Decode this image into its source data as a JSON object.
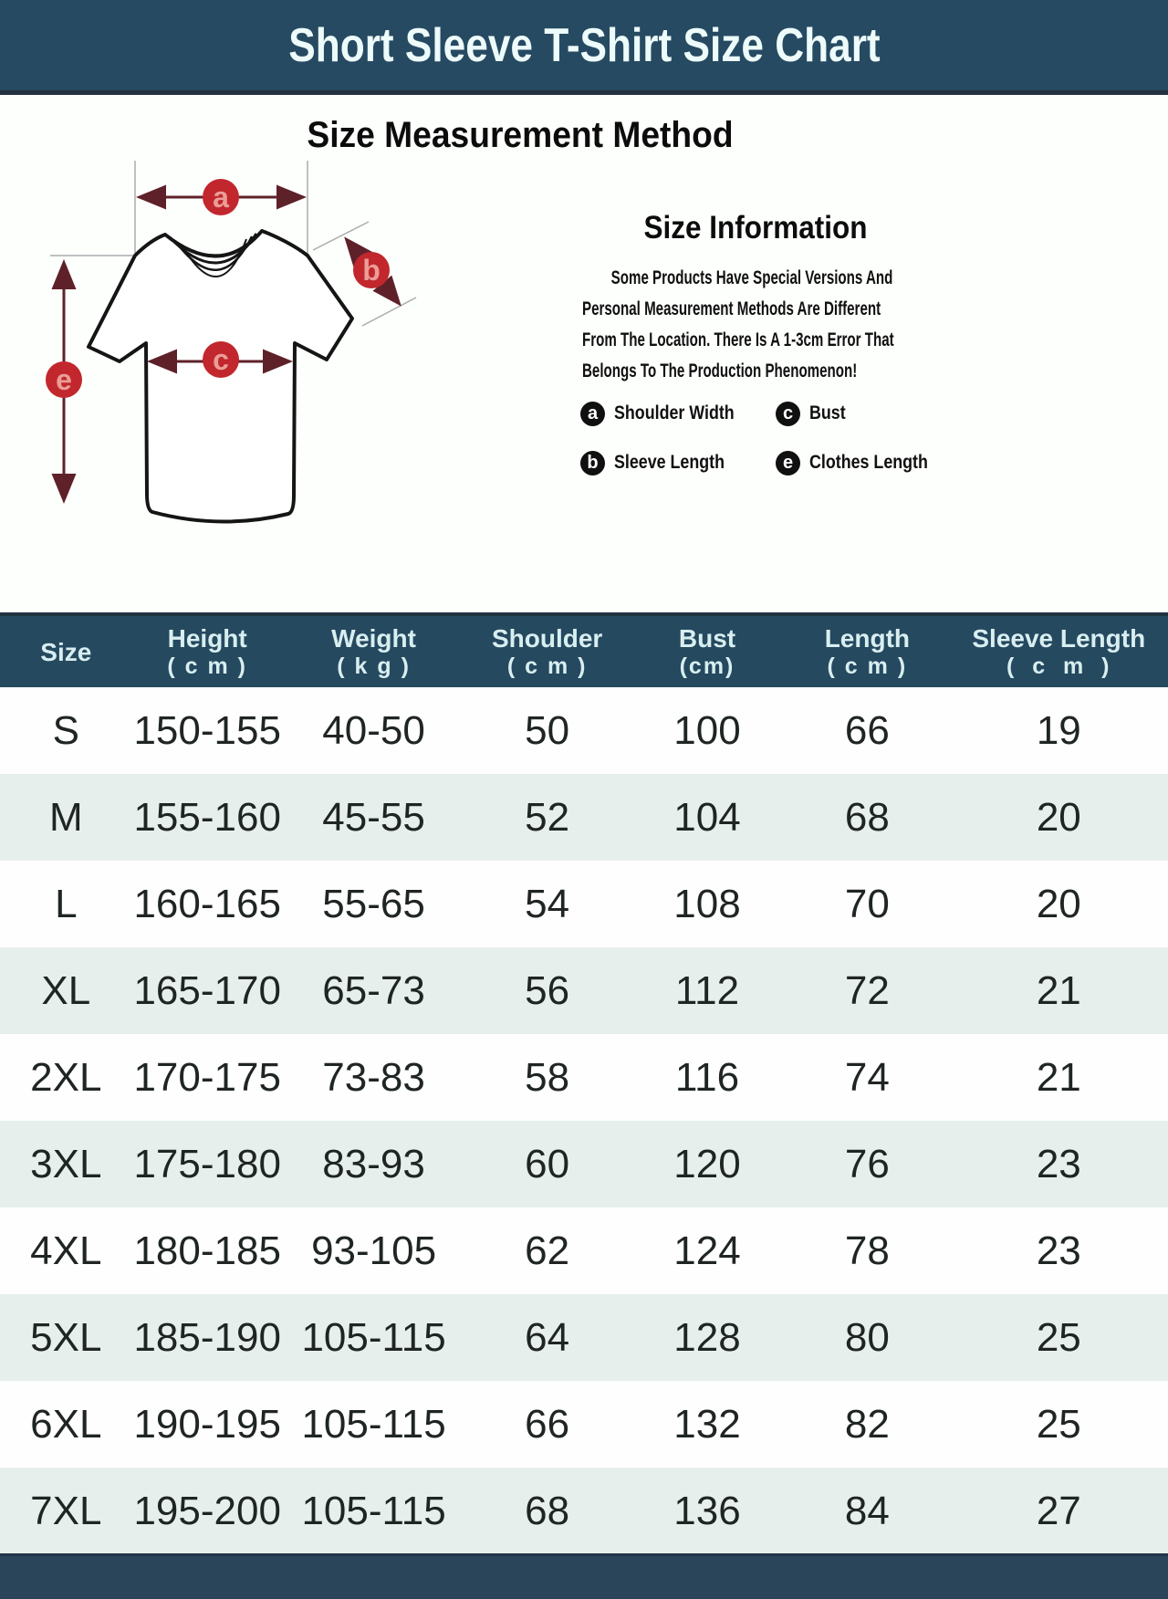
{
  "banner": {
    "title": "Short Sleeve T-Shirt Size Chart"
  },
  "method": {
    "title": "Size Measurement Method",
    "info": {
      "title": "Size Information",
      "lines": [
        "Some Products Have Special Versions And",
        "Personal Measurement Methods Are Different",
        "From The Location. There Is A 1-3cm Error That",
        "Belongs To The Production Phenomenon!"
      ]
    },
    "legend": [
      {
        "key": "a",
        "label": "Shoulder Width"
      },
      {
        "key": "c",
        "label": "Bust"
      },
      {
        "key": "b",
        "label": "Sleeve Length"
      },
      {
        "key": "e",
        "label": "Clothes Length"
      }
    ],
    "markers": {
      "a": "a",
      "b": "b",
      "c": "c",
      "e": "e"
    }
  },
  "table": {
    "columns": [
      {
        "label": "Size",
        "unit": ""
      },
      {
        "label": "Height",
        "unit": "( c m )"
      },
      {
        "label": "Weight",
        "unit": "( k g )"
      },
      {
        "label": "Shoulder",
        "unit": "( c m )"
      },
      {
        "label": "Bust",
        "unit": "(cm)"
      },
      {
        "label": "Length",
        "unit": "( c m )"
      },
      {
        "label": "Sleeve Length",
        "unit": "(  c  m  )"
      }
    ],
    "rows": [
      [
        "S",
        "150-155",
        "40-50",
        "50",
        "100",
        "66",
        "19"
      ],
      [
        "M",
        "155-160",
        "45-55",
        "52",
        "104",
        "68",
        "20"
      ],
      [
        "L",
        "160-165",
        "55-65",
        "54",
        "108",
        "70",
        "20"
      ],
      [
        "XL",
        "165-170",
        "65-73",
        "56",
        "112",
        "72",
        "21"
      ],
      [
        "2XL",
        "170-175",
        "73-83",
        "58",
        "116",
        "74",
        "21"
      ],
      [
        "3XL",
        "175-180",
        "83-93",
        "60",
        "120",
        "76",
        "23"
      ],
      [
        "4XL",
        "180-185",
        "93-105",
        "62",
        "124",
        "78",
        "23"
      ],
      [
        "5XL",
        "185-190",
        "105-115",
        "64",
        "128",
        "80",
        "25"
      ],
      [
        "6XL",
        "190-195",
        "105-115",
        "66",
        "132",
        "82",
        "25"
      ],
      [
        "7XL",
        "195-200",
        "105-115",
        "68",
        "136",
        "84",
        "27"
      ]
    ]
  },
  "colors": {
    "banner_bg": "#264a62",
    "table_header_bg": "#25495f",
    "row_alt_bg": "#e7efec",
    "footer_bg": "#2a4459",
    "marker_red": "#c1272d",
    "marker_letter": "#eb9d96",
    "arrow_maroon": "#5e2129"
  }
}
